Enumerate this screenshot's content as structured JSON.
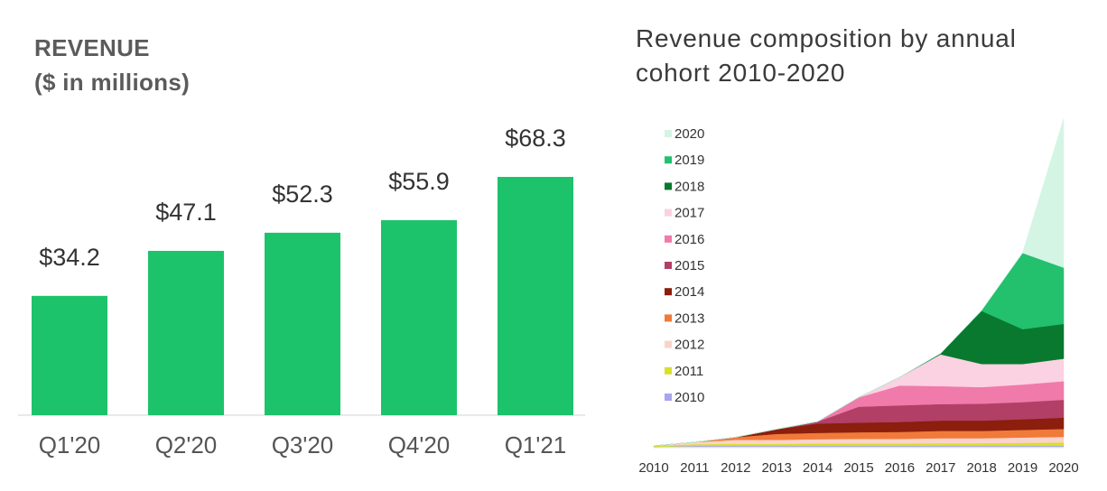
{
  "chart_data": [
    {
      "type": "bar",
      "title": "REVENUE",
      "subtitle": "($ in millions)",
      "categories": [
        "Q1'20",
        "Q2'20",
        "Q3'20",
        "Q4'20",
        "Q1'21"
      ],
      "values": [
        34.2,
        47.1,
        52.3,
        55.9,
        68.3
      ],
      "data_labels": [
        "$34.2",
        "$47.1",
        "$52.3",
        "$55.9",
        "$68.3"
      ],
      "ylim": [
        0,
        80
      ],
      "bar_color": "#1cc36b",
      "grid": false
    },
    {
      "type": "area",
      "title": "Revenue composition by annual cohort 2010-2020",
      "x": [
        "2010",
        "2011",
        "2012",
        "2013",
        "2014",
        "2015",
        "2016",
        "2017",
        "2018",
        "2019",
        "2020"
      ],
      "legend_position": "top-left",
      "ylim": [
        0,
        100
      ],
      "series": [
        {
          "name": "2010",
          "color": "#a8a4ee",
          "values": [
            0,
            0.3,
            0.3,
            0.3,
            0.3,
            0.3,
            0.3,
            0.3,
            0.3,
            0.3,
            0.3
          ]
        },
        {
          "name": "2011",
          "color": "#d7e02a",
          "values": [
            0.3,
            0.5,
            0.6,
            0.6,
            0.7,
            0.7,
            0.7,
            0.8,
            0.8,
            0.9,
            1.0
          ]
        },
        {
          "name": "2012",
          "color": "#fbd3cc",
          "values": [
            0,
            0.6,
            1.2,
            1.2,
            1.3,
            1.4,
            1.4,
            1.5,
            1.5,
            1.6,
            1.7
          ]
        },
        {
          "name": "2013",
          "color": "#f07a3a",
          "values": [
            0,
            0,
            0.8,
            1.8,
            1.9,
            2.0,
            2.1,
            2.2,
            2.2,
            2.3,
            2.4
          ]
        },
        {
          "name": "2014",
          "color": "#8b1e0c",
          "values": [
            0,
            0,
            0,
            1.4,
            2.8,
            2.9,
            3.0,
            3.1,
            3.1,
            3.2,
            3.4
          ]
        },
        {
          "name": "2015",
          "color": "#b23f66",
          "values": [
            0,
            0,
            0,
            0,
            0.6,
            4.8,
            5.0,
            5.0,
            5.1,
            5.2,
            5.4
          ]
        },
        {
          "name": "2016",
          "color": "#f07aaa",
          "values": [
            0,
            0,
            0,
            0,
            0,
            2.8,
            6.0,
            5.4,
            5.0,
            5.3,
            5.6
          ]
        },
        {
          "name": "2017",
          "color": "#fbd2e2",
          "values": [
            0,
            0,
            0,
            0,
            0,
            0,
            2.5,
            9.6,
            7.0,
            6.2,
            6.8
          ]
        },
        {
          "name": "2018",
          "color": "#08792f",
          "values": [
            0,
            0,
            0,
            0,
            0,
            0,
            0,
            0.3,
            16.0,
            10.5,
            10.5
          ]
        },
        {
          "name": "2019",
          "color": "#23c06e",
          "values": [
            0,
            0,
            0,
            0,
            0,
            0,
            0,
            0,
            0.2,
            23.0,
            17.0
          ]
        },
        {
          "name": "2020",
          "color": "#d4f5e4",
          "values": [
            0,
            0,
            0,
            0,
            0,
            0,
            0,
            0,
            0,
            0.2,
            45.0
          ]
        }
      ]
    }
  ]
}
